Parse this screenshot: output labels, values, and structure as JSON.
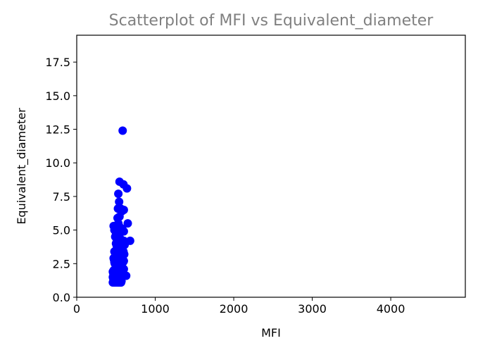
{
  "chart_data": {
    "type": "scatter",
    "title": "Scatterplot of MFI vs Equivalent_diameter",
    "xlabel": "MFI",
    "ylabel": "Equivalent_diameter",
    "xlim": [
      0,
      4950
    ],
    "ylim": [
      0,
      19.5
    ],
    "xticks": [
      0,
      1000,
      2000,
      3000,
      4000
    ],
    "xtick_labels": [
      "0",
      "1000",
      "2000",
      "3000",
      "4000"
    ],
    "yticks": [
      0.0,
      2.5,
      5.0,
      7.5,
      10.0,
      12.5,
      15.0,
      17.5
    ],
    "ytick_labels": [
      "0.0",
      "2.5",
      "5.0",
      "7.5",
      "10.0",
      "12.5",
      "15.0",
      "17.5"
    ],
    "grid": false,
    "legend": "none",
    "marker_color": "#0000ff",
    "title_color": "#808080",
    "series": [
      {
        "x": [
          585,
          545,
          595,
          640,
          530,
          540,
          525,
          560,
          575,
          600,
          545,
          520,
          530,
          540,
          555,
          580,
          600,
          540,
          650,
          680,
          470,
          480,
          500,
          490,
          520,
          510,
          530,
          550,
          560,
          570,
          590,
          600,
          610,
          500,
          510,
          520,
          525,
          530,
          540,
          550,
          555,
          560,
          565,
          575,
          580,
          585,
          595,
          605,
          480,
          490,
          500,
          505,
          510,
          515,
          520,
          530,
          535,
          540,
          545,
          550,
          555,
          560,
          570,
          580,
          590,
          600,
          470,
          475,
          480,
          485,
          490,
          495,
          500,
          505,
          510,
          515,
          520,
          525,
          530,
          540,
          545,
          550,
          555,
          560,
          565,
          575,
          585,
          600,
          630,
          460,
          465,
          470,
          475,
          480,
          490,
          500,
          510,
          520,
          530,
          540,
          550,
          560,
          460,
          465,
          470,
          475,
          480,
          485,
          490,
          495,
          500,
          505,
          510,
          515,
          520,
          525,
          530,
          535,
          540,
          545,
          550,
          555,
          560,
          565,
          570,
          460,
          470,
          480,
          490,
          500,
          510,
          520,
          530,
          540,
          550,
          555,
          560
        ],
        "y": [
          12.4,
          8.6,
          8.4,
          8.1,
          7.7,
          7.1,
          6.6,
          6.6,
          6.4,
          6.5,
          6.0,
          5.9,
          5.5,
          5.3,
          5.1,
          5.1,
          4.9,
          4.7,
          5.5,
          4.2,
          5.3,
          5.0,
          4.8,
          4.5,
          4.5,
          4.3,
          4.2,
          4.4,
          4.3,
          4.1,
          4.0,
          4.2,
          3.9,
          4.0,
          3.8,
          3.7,
          3.9,
          3.6,
          3.8,
          3.7,
          3.5,
          3.6,
          3.4,
          3.5,
          3.7,
          3.3,
          3.4,
          3.2,
          3.4,
          3.3,
          3.2,
          3.1,
          3.0,
          3.2,
          2.9,
          3.0,
          3.1,
          2.8,
          3.0,
          2.9,
          2.8,
          2.7,
          2.9,
          2.8,
          2.6,
          2.7,
          2.9,
          2.8,
          2.6,
          2.5,
          2.7,
          2.4,
          2.6,
          2.5,
          2.3,
          2.4,
          2.5,
          2.2,
          2.3,
          2.4,
          2.2,
          2.1,
          2.3,
          2.2,
          2.0,
          2.1,
          2.0,
          2.1,
          1.6,
          1.9,
          1.8,
          2.0,
          1.9,
          1.7,
          1.8,
          1.7,
          1.6,
          1.8,
          1.7,
          1.6,
          1.5,
          1.7,
          1.5,
          1.4,
          1.6,
          1.3,
          1.5,
          1.4,
          1.3,
          1.5,
          1.2,
          1.4,
          1.3,
          1.2,
          1.4,
          1.3,
          1.2,
          1.1,
          1.3,
          1.2,
          1.1,
          1.2,
          1.3,
          1.1,
          1.2,
          1.1,
          1.2,
          1.1,
          1.2,
          1.1,
          1.2,
          1.1,
          1.2,
          1.1,
          1.2,
          1.1,
          1.2
        ]
      }
    ]
  }
}
